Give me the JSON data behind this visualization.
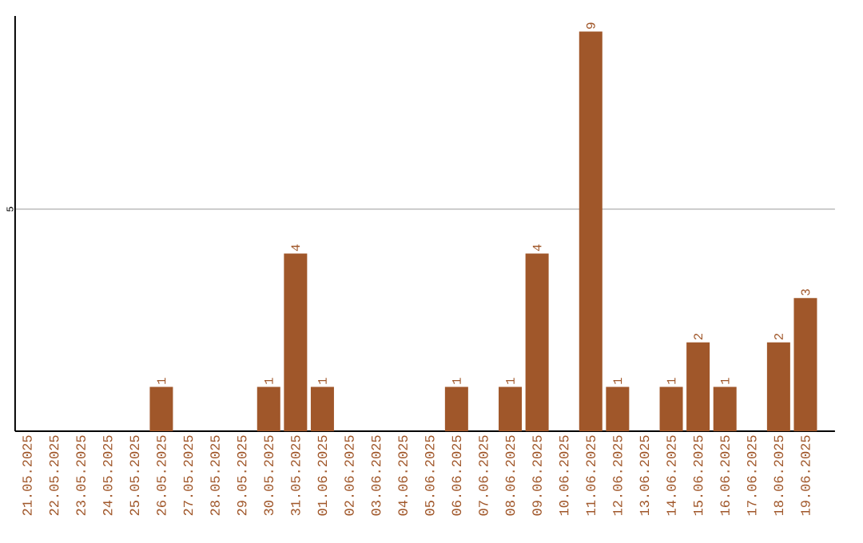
{
  "chart_data": {
    "type": "bar",
    "categories": [
      "21.05.2025",
      "22.05.2025",
      "23.05.2025",
      "24.05.2025",
      "25.05.2025",
      "26.05.2025",
      "27.05.2025",
      "28.05.2025",
      "29.05.2025",
      "30.05.2025",
      "31.05.2025",
      "01.06.2025",
      "02.06.2025",
      "03.06.2025",
      "04.06.2025",
      "05.06.2025",
      "06.06.2025",
      "07.06.2025",
      "08.06.2025",
      "09.06.2025",
      "10.06.2025",
      "11.06.2025",
      "12.06.2025",
      "13.06.2025",
      "14.06.2025",
      "15.06.2025",
      "16.06.2025",
      "17.06.2025",
      "18.06.2025",
      "19.06.2025"
    ],
    "values": [
      0,
      0,
      0,
      0,
      0,
      1,
      0,
      0,
      0,
      1,
      4,
      1,
      0,
      0,
      0,
      0,
      1,
      0,
      1,
      4,
      0,
      9,
      1,
      0,
      1,
      2,
      1,
      0,
      2,
      3
    ],
    "value_labels": [
      null,
      null,
      null,
      null,
      null,
      "1",
      null,
      null,
      null,
      "1",
      "4",
      "1",
      null,
      null,
      null,
      null,
      "1",
      null,
      "1",
      "4",
      null,
      "9",
      "1",
      null,
      "1",
      "2",
      "1",
      null,
      "2",
      "3"
    ],
    "color": "#a0572a",
    "ylim": [
      0,
      9.35
    ],
    "yticks": [
      5
    ],
    "grid": "y"
  }
}
